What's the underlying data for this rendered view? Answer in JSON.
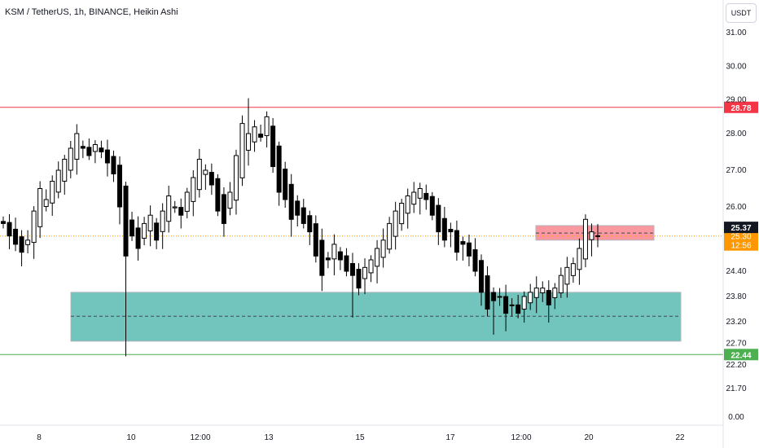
{
  "header": {
    "title": "KSM / TetherUS, 1h, BINANCE, Heikin Ashi",
    "currency_button": "USDT"
  },
  "colors": {
    "up": "#000000",
    "down": "#000000",
    "resistance": "#f23645",
    "support": "#4caf50",
    "demand_zone": "#26a69a",
    "supply_zone": "#f7525f",
    "last_price_line": "#ff9800",
    "grid": "#e0e3eb"
  },
  "chart_data": {
    "type": "candlestick",
    "title": "KSM / TetherUS, 1h, BINANCE, Heikin Ashi",
    "symbol": "KSM / TetherUS",
    "interval": "1h",
    "exchange": "BINANCE",
    "style": "Heikin Ashi",
    "currency": "USDT",
    "x_tick_labels": [
      "8",
      "10",
      "12:00",
      "13",
      "15",
      "17",
      "12:00",
      "20",
      "22"
    ],
    "y_tick_labels": [
      "31.00",
      "30.00",
      "29.00",
      "28.00",
      "27.00",
      "26.00",
      "24.40",
      "23.80",
      "23.20",
      "22.70",
      "22.20",
      "21.70",
      "0.00"
    ],
    "horizontal_lines": [
      {
        "label": "28.78",
        "value": 28.78,
        "color": "#f23645"
      },
      {
        "label": "22.44",
        "value": 22.44,
        "color": "#4caf50"
      }
    ],
    "zones": [
      {
        "type": "demand",
        "from_value": 22.75,
        "to_value": 23.9,
        "mid_value": 23.33,
        "color": "#26a69a"
      },
      {
        "type": "supply",
        "from_value": 25.2,
        "to_value": 25.55,
        "mid_value": 25.37,
        "color": "#f7525f"
      }
    ],
    "last_price": {
      "label": "25.37",
      "value": 25.37
    },
    "current_price": {
      "label": "25.30",
      "countdown": "12:56",
      "value": 25.3
    },
    "closes": [
      25.6,
      25.3,
      25.1,
      24.9,
      25.2,
      25.9,
      26.5,
      26.2,
      26.7,
      27.0,
      27.3,
      27.6,
      28.0,
      27.6,
      27.4,
      27.7,
      27.5,
      27.2,
      26.9,
      26.0,
      24.8,
      25.3,
      25.0,
      25.6,
      25.8,
      25.2,
      25.9,
      26.3,
      26.0,
      25.8,
      26.4,
      26.8,
      27.3,
      27.0,
      26.6,
      25.9,
      25.6,
      26.4,
      27.4,
      28.3,
      28.0,
      28.2,
      27.9,
      28.5,
      27.1,
      26.4,
      26.2,
      25.7,
      25.8,
      25.6,
      25.4,
      24.8,
      24.3,
      24.7,
      25.1,
      24.7,
      24.4,
      24.3,
      24.0,
      24.5,
      24.7,
      25.0,
      25.2,
      25.6,
      25.9,
      26.1,
      26.3,
      26.4,
      26.5,
      26.2,
      25.8,
      25.4,
      25.2,
      25.4,
      24.9,
      25.1,
      24.8,
      24.4,
      23.9,
      23.5,
      23.7,
      23.8,
      23.4,
      23.6,
      23.4,
      23.8,
      23.9,
      24.0,
      24.0,
      23.6,
      24.0,
      24.3,
      24.5,
      24.6,
      25.0,
      25.7,
      25.4,
      25.3
    ]
  }
}
